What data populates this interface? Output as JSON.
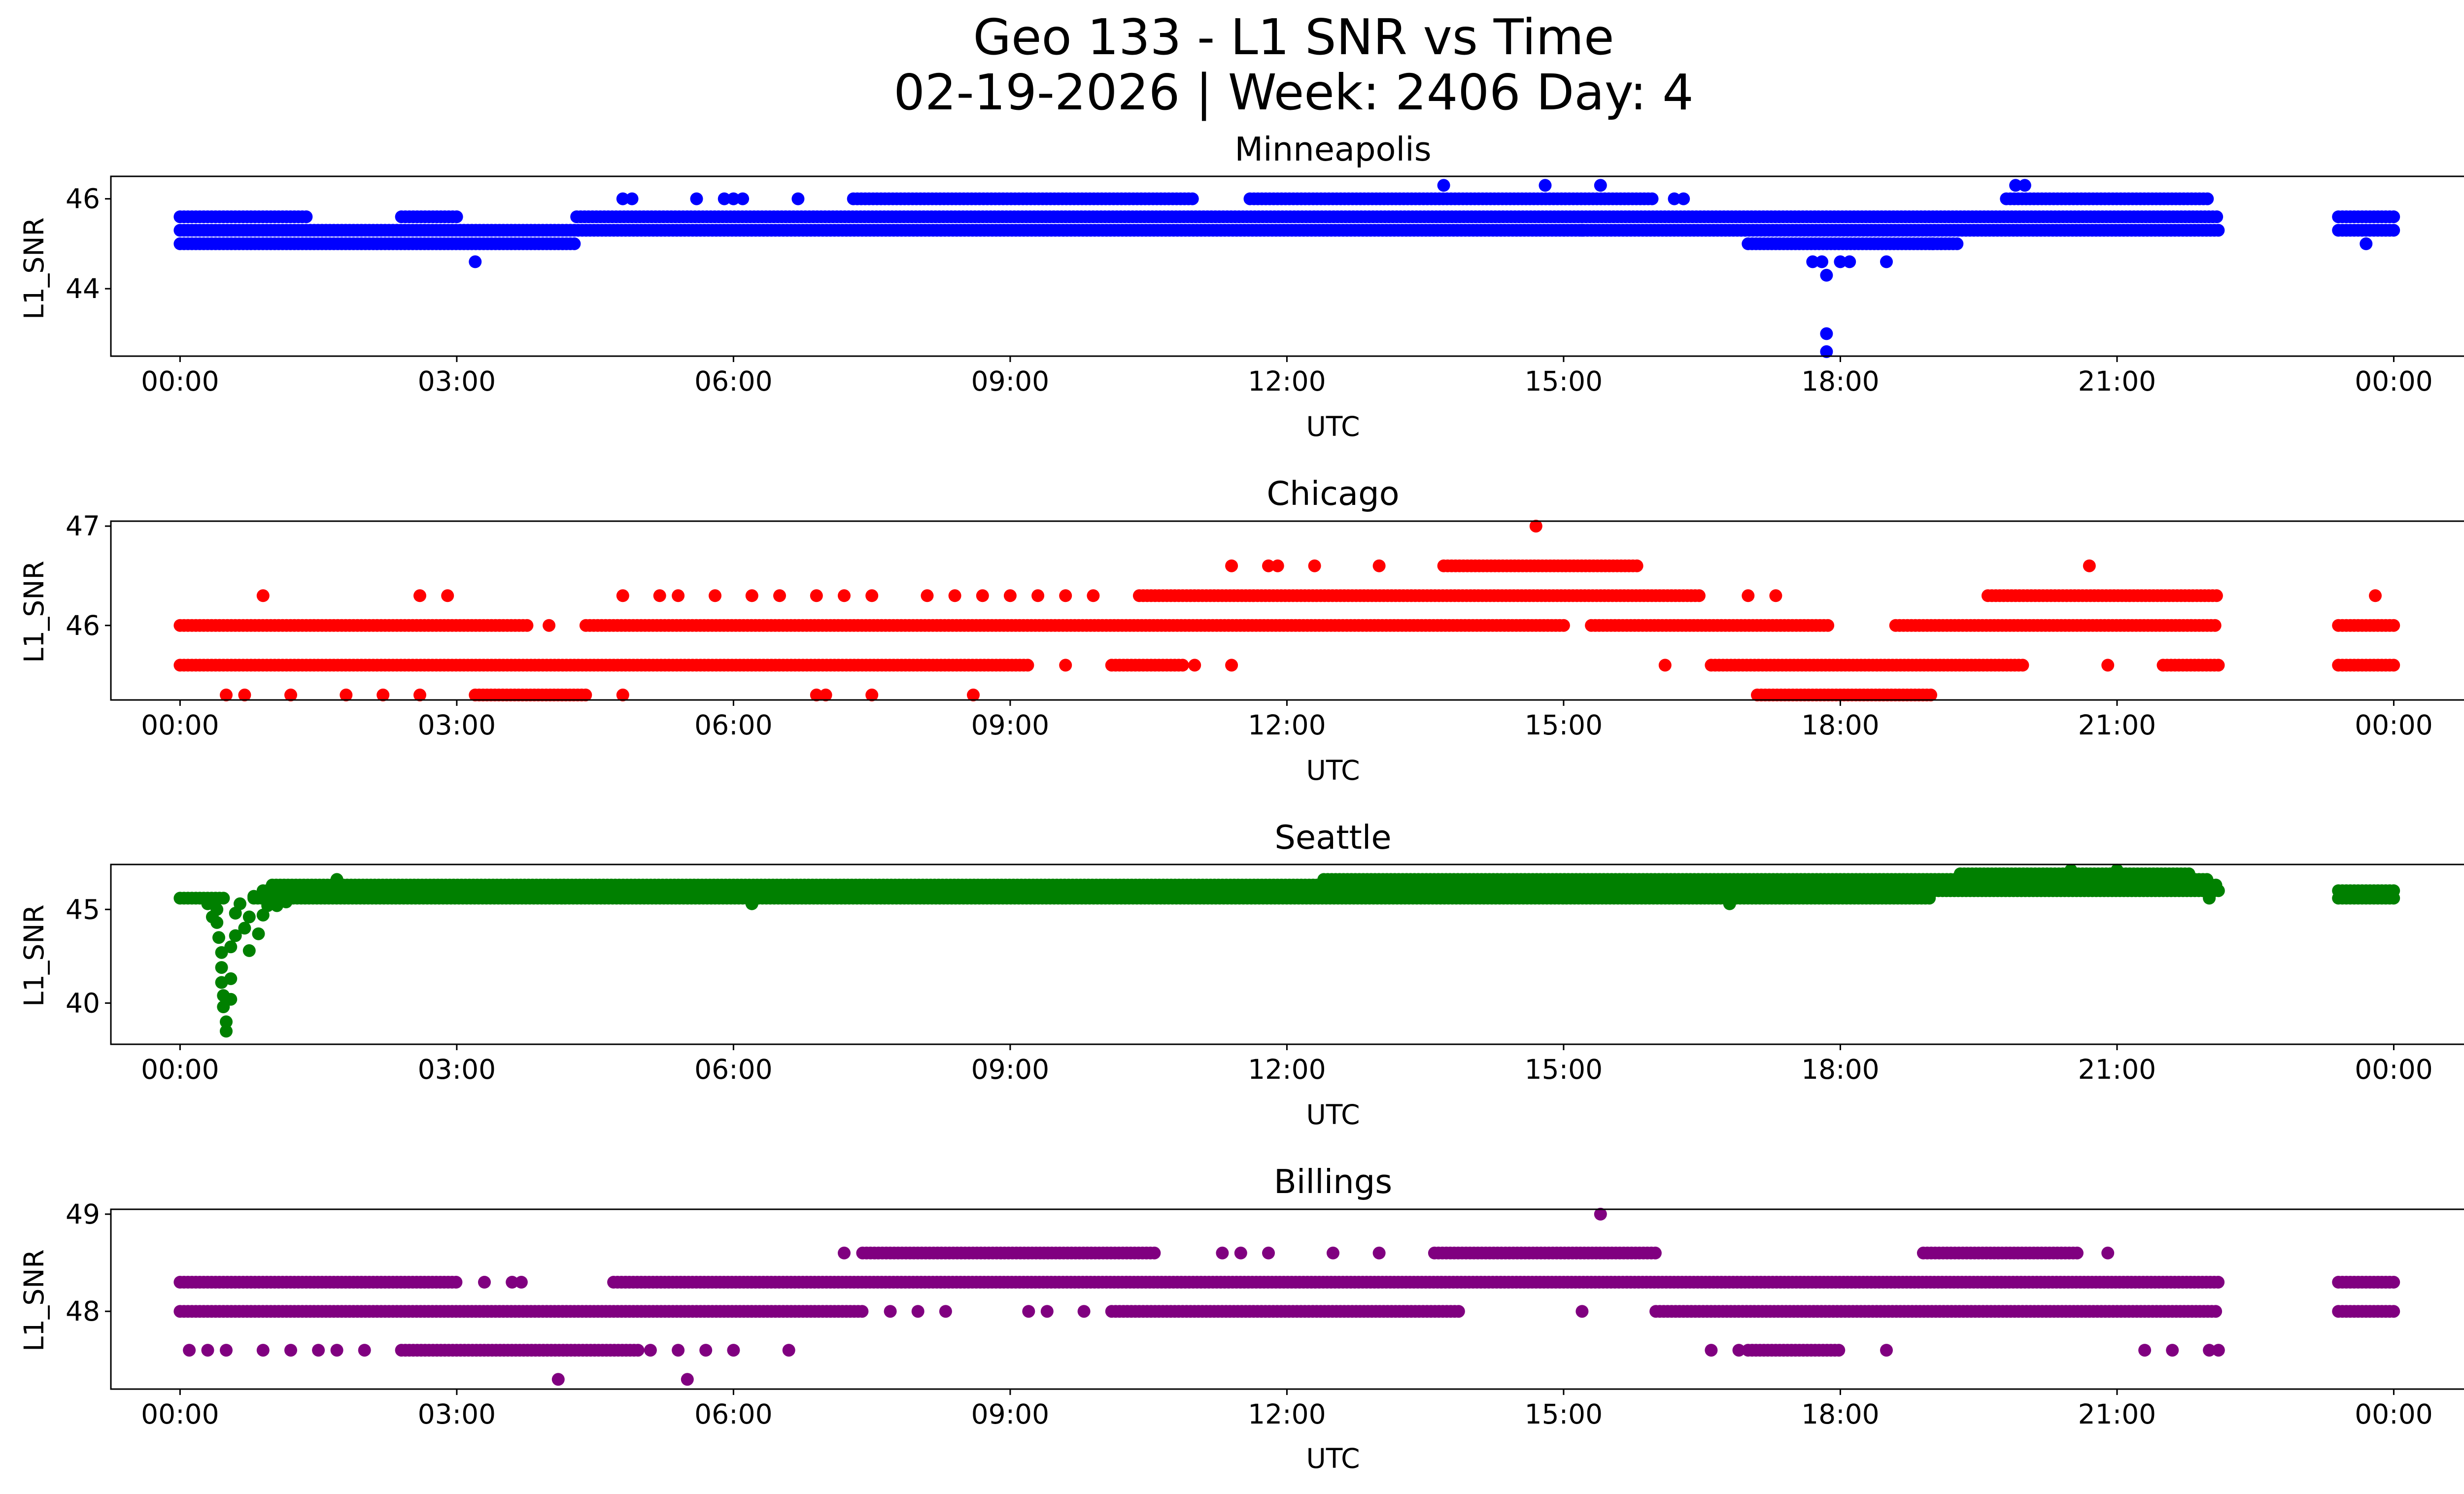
{
  "figure": {
    "title_line1": "Geo 133 - L1 SNR vs Time",
    "title_line2": "02-19-2026 | Week: 2406 Day: 4"
  },
  "chart_data": [
    {
      "type": "scatter",
      "title": "Minneapolis",
      "xlabel": "UTC",
      "ylabel": "L1_SNR",
      "color": "#0000ff",
      "xlim": [
        -0.75,
        25.75
      ],
      "ylim": [
        42.5,
        46.5
      ],
      "xtick_values": [
        0,
        3,
        6,
        9,
        12,
        15,
        18,
        21,
        24
      ],
      "xtick_labels": [
        "00:00",
        "03:00",
        "06:00",
        "09:00",
        "12:00",
        "15:00",
        "18:00",
        "21:00",
        "00:00"
      ],
      "ytick_values": [
        44,
        46
      ],
      "ytick_labels": [
        "44",
        "46"
      ],
      "bands": [
        {
          "y": 45.0,
          "segments": [
            [
              0.0,
              4.3
            ],
            [
              17.0,
              19.3
            ]
          ]
        },
        {
          "y": 45.3,
          "segments": [
            [
              0.0,
              22.1
            ],
            [
              23.4,
              24.0
            ]
          ]
        },
        {
          "y": 45.6,
          "segments": [
            [
              0.0,
              1.4
            ],
            [
              2.4,
              3.0
            ],
            [
              4.3,
              22.1
            ],
            [
              23.4,
              24.0
            ]
          ]
        },
        {
          "y": 46.0,
          "segments": [
            [
              7.3,
              11.0
            ],
            [
              11.6,
              16.0
            ],
            [
              19.8,
              22.0
            ]
          ]
        }
      ],
      "points": [
        {
          "x": 3.2,
          "y": 44.6
        },
        {
          "x": 4.8,
          "y": 46.0
        },
        {
          "x": 4.9,
          "y": 46.0
        },
        {
          "x": 5.6,
          "y": 46.0
        },
        {
          "x": 5.9,
          "y": 46.0
        },
        {
          "x": 6.0,
          "y": 46.0
        },
        {
          "x": 6.1,
          "y": 46.0
        },
        {
          "x": 6.7,
          "y": 46.0
        },
        {
          "x": 13.7,
          "y": 46.3
        },
        {
          "x": 14.8,
          "y": 46.3
        },
        {
          "x": 15.4,
          "y": 46.3
        },
        {
          "x": 15.2,
          "y": 45.3
        },
        {
          "x": 16.2,
          "y": 46.0
        },
        {
          "x": 16.3,
          "y": 46.0
        },
        {
          "x": 17.7,
          "y": 44.6
        },
        {
          "x": 17.8,
          "y": 44.6
        },
        {
          "x": 17.85,
          "y": 44.3
        },
        {
          "x": 18.0,
          "y": 44.6
        },
        {
          "x": 18.1,
          "y": 44.6
        },
        {
          "x": 17.85,
          "y": 43.0
        },
        {
          "x": 17.85,
          "y": 42.6
        },
        {
          "x": 18.5,
          "y": 44.6
        },
        {
          "x": 19.0,
          "y": 45.0
        },
        {
          "x": 19.9,
          "y": 46.3
        },
        {
          "x": 20.0,
          "y": 46.3
        },
        {
          "x": 23.7,
          "y": 45.0
        }
      ]
    },
    {
      "type": "scatter",
      "title": "Chicago",
      "xlabel": "UTC",
      "ylabel": "L1_SNR",
      "color": "#ff0000",
      "xlim": [
        -0.75,
        25.75
      ],
      "ylim": [
        45.25,
        47.05
      ],
      "xtick_values": [
        0,
        3,
        6,
        9,
        12,
        15,
        18,
        21,
        24
      ],
      "xtick_labels": [
        "00:00",
        "03:00",
        "06:00",
        "09:00",
        "12:00",
        "15:00",
        "18:00",
        "21:00",
        "00:00"
      ],
      "ytick_values": [
        46,
        47
      ],
      "ytick_labels": [
        "46",
        "47"
      ],
      "bands": [
        {
          "y": 45.3,
          "segments": [
            [
              3.2,
              4.4
            ],
            [
              17.1,
              19.0
            ]
          ]
        },
        {
          "y": 45.6,
          "segments": [
            [
              0.0,
              9.2
            ],
            [
              10.1,
              10.9
            ],
            [
              16.6,
              20.0
            ],
            [
              21.5,
              22.1
            ],
            [
              23.4,
              24.0
            ]
          ]
        },
        {
          "y": 46.0,
          "segments": [
            [
              0.0,
              3.8
            ],
            [
              4.4,
              15.0
            ],
            [
              15.3,
              17.9
            ],
            [
              18.6,
              22.1
            ],
            [
              23.4,
              24.0
            ]
          ]
        },
        {
          "y": 46.3,
          "segments": [
            [
              10.4,
              16.5
            ],
            [
              19.6,
              22.1
            ]
          ]
        },
        {
          "y": 46.6,
          "segments": [
            [
              13.7,
              15.8
            ]
          ]
        }
      ],
      "points": [
        {
          "x": 0.5,
          "y": 45.3
        },
        {
          "x": 0.7,
          "y": 45.3
        },
        {
          "x": 1.2,
          "y": 45.3
        },
        {
          "x": 1.8,
          "y": 45.3
        },
        {
          "x": 2.2,
          "y": 45.3
        },
        {
          "x": 2.6,
          "y": 45.3
        },
        {
          "x": 4.8,
          "y": 45.3
        },
        {
          "x": 6.9,
          "y": 45.3
        },
        {
          "x": 7.0,
          "y": 45.3
        },
        {
          "x": 7.5,
          "y": 45.3
        },
        {
          "x": 8.6,
          "y": 45.3
        },
        {
          "x": 0.9,
          "y": 46.3
        },
        {
          "x": 2.6,
          "y": 46.3
        },
        {
          "x": 2.9,
          "y": 46.3
        },
        {
          "x": 4.0,
          "y": 46.0
        },
        {
          "x": 4.8,
          "y": 46.3
        },
        {
          "x": 5.2,
          "y": 46.3
        },
        {
          "x": 5.4,
          "y": 46.3
        },
        {
          "x": 5.8,
          "y": 46.3
        },
        {
          "x": 6.2,
          "y": 46.3
        },
        {
          "x": 6.5,
          "y": 46.3
        },
        {
          "x": 6.9,
          "y": 46.3
        },
        {
          "x": 7.2,
          "y": 46.3
        },
        {
          "x": 7.5,
          "y": 46.3
        },
        {
          "x": 8.1,
          "y": 46.3
        },
        {
          "x": 8.4,
          "y": 46.3
        },
        {
          "x": 8.7,
          "y": 46.3
        },
        {
          "x": 9.0,
          "y": 46.3
        },
        {
          "x": 9.3,
          "y": 46.3
        },
        {
          "x": 9.6,
          "y": 46.3
        },
        {
          "x": 9.9,
          "y": 46.3
        },
        {
          "x": 11.4,
          "y": 46.6
        },
        {
          "x": 11.8,
          "y": 46.6
        },
        {
          "x": 11.9,
          "y": 46.6
        },
        {
          "x": 12.3,
          "y": 46.6
        },
        {
          "x": 13.0,
          "y": 46.6
        },
        {
          "x": 14.7,
          "y": 47.0
        },
        {
          "x": 16.1,
          "y": 45.6
        },
        {
          "x": 17.0,
          "y": 46.3
        },
        {
          "x": 17.3,
          "y": 46.3
        },
        {
          "x": 20.7,
          "y": 46.6
        },
        {
          "x": 9.6,
          "y": 45.6
        },
        {
          "x": 11.4,
          "y": 45.6
        },
        {
          "x": 20.9,
          "y": 45.6
        },
        {
          "x": 11.0,
          "y": 45.6
        },
        {
          "x": 23.8,
          "y": 46.3
        }
      ]
    },
    {
      "type": "scatter",
      "title": "Seattle",
      "xlabel": "UTC",
      "ylabel": "L1_SNR",
      "color": "#008000",
      "xlim": [
        -0.75,
        25.75
      ],
      "ylim": [
        37.8,
        47.4
      ],
      "xtick_values": [
        0,
        3,
        6,
        9,
        12,
        15,
        18,
        21,
        24
      ],
      "xtick_labels": [
        "00:00",
        "03:00",
        "06:00",
        "09:00",
        "12:00",
        "15:00",
        "18:00",
        "21:00",
        "00:00"
      ],
      "ytick_values": [
        40,
        45
      ],
      "ytick_labels": [
        "40",
        "45"
      ],
      "bands": [
        {
          "y": 45.6,
          "segments": [
            [
              0.0,
              0.5
            ],
            [
              0.8,
              19.0
            ],
            [
              23.4,
              24.0
            ]
          ]
        },
        {
          "y": 46.0,
          "segments": [
            [
              0.9,
              22.1
            ],
            [
              23.4,
              24.0
            ]
          ]
        },
        {
          "y": 46.3,
          "segments": [
            [
              1.0,
              22.1
            ]
          ]
        },
        {
          "y": 46.6,
          "segments": [
            [
              12.4,
              22.0
            ]
          ]
        },
        {
          "y": 46.9,
          "segments": [
            [
              19.3,
              21.8
            ]
          ]
        }
      ],
      "points": [
        {
          "x": 0.4,
          "y": 45.0
        },
        {
          "x": 0.4,
          "y": 44.3
        },
        {
          "x": 0.42,
          "y": 43.5
        },
        {
          "x": 0.45,
          "y": 42.7
        },
        {
          "x": 0.45,
          "y": 41.9
        },
        {
          "x": 0.45,
          "y": 41.1
        },
        {
          "x": 0.47,
          "y": 40.4
        },
        {
          "x": 0.47,
          "y": 39.8
        },
        {
          "x": 0.5,
          "y": 39.0
        },
        {
          "x": 0.5,
          "y": 38.5
        },
        {
          "x": 0.55,
          "y": 40.2
        },
        {
          "x": 0.55,
          "y": 41.3
        },
        {
          "x": 0.55,
          "y": 43.0
        },
        {
          "x": 0.6,
          "y": 44.8
        },
        {
          "x": 0.6,
          "y": 43.6
        },
        {
          "x": 0.65,
          "y": 45.3
        },
        {
          "x": 0.7,
          "y": 44.0
        },
        {
          "x": 0.75,
          "y": 42.8
        },
        {
          "x": 0.75,
          "y": 44.6
        },
        {
          "x": 0.8,
          "y": 45.7
        },
        {
          "x": 0.85,
          "y": 43.7
        },
        {
          "x": 0.9,
          "y": 44.7
        },
        {
          "x": 0.95,
          "y": 45.2
        },
        {
          "x": 1.05,
          "y": 45.2
        },
        {
          "x": 1.15,
          "y": 45.4
        },
        {
          "x": 0.3,
          "y": 45.3
        },
        {
          "x": 0.35,
          "y": 44.6
        },
        {
          "x": 1.7,
          "y": 46.6
        },
        {
          "x": 6.2,
          "y": 45.3
        },
        {
          "x": 16.8,
          "y": 45.3
        },
        {
          "x": 20.5,
          "y": 47.1
        },
        {
          "x": 21.0,
          "y": 47.1
        },
        {
          "x": 22.0,
          "y": 45.6
        }
      ]
    },
    {
      "type": "scatter",
      "title": "Billings",
      "xlabel": "UTC",
      "ylabel": "L1_SNR",
      "color": "#800080",
      "xlim": [
        -0.75,
        25.75
      ],
      "ylim": [
        47.2,
        49.05
      ],
      "xtick_values": [
        0,
        3,
        6,
        9,
        12,
        15,
        18,
        21,
        24
      ],
      "xtick_labels": [
        "00:00",
        "03:00",
        "06:00",
        "09:00",
        "12:00",
        "15:00",
        "18:00",
        "21:00",
        "00:00"
      ],
      "ytick_values": [
        48,
        49
      ],
      "ytick_labels": [
        "48",
        "49"
      ],
      "bands": [
        {
          "y": 47.6,
          "segments": [
            [
              2.4,
              5.0
            ],
            [
              17.0,
              18.0
            ]
          ]
        },
        {
          "y": 48.0,
          "segments": [
            [
              0.0,
              7.4
            ],
            [
              10.1,
              13.9
            ],
            [
              16.0,
              22.1
            ],
            [
              23.4,
              24.0
            ]
          ]
        },
        {
          "y": 48.3,
          "segments": [
            [
              0.0,
              3.0
            ],
            [
              4.7,
              22.1
            ],
            [
              23.4,
              24.0
            ]
          ]
        },
        {
          "y": 48.6,
          "segments": [
            [
              7.4,
              10.6
            ],
            [
              13.6,
              16.0
            ],
            [
              18.9,
              20.6
            ]
          ]
        }
      ],
      "points": [
        {
          "x": 0.1,
          "y": 47.6
        },
        {
          "x": 0.3,
          "y": 47.6
        },
        {
          "x": 0.5,
          "y": 47.6
        },
        {
          "x": 0.9,
          "y": 47.6
        },
        {
          "x": 1.2,
          "y": 47.6
        },
        {
          "x": 1.5,
          "y": 47.6
        },
        {
          "x": 1.7,
          "y": 47.6
        },
        {
          "x": 2.0,
          "y": 47.6
        },
        {
          "x": 3.3,
          "y": 48.3
        },
        {
          "x": 3.6,
          "y": 48.3
        },
        {
          "x": 3.7,
          "y": 48.3
        },
        {
          "x": 4.1,
          "y": 47.3
        },
        {
          "x": 5.5,
          "y": 47.3
        },
        {
          "x": 5.1,
          "y": 47.6
        },
        {
          "x": 5.4,
          "y": 47.6
        },
        {
          "x": 5.7,
          "y": 47.6
        },
        {
          "x": 6.0,
          "y": 47.6
        },
        {
          "x": 6.6,
          "y": 47.6
        },
        {
          "x": 7.2,
          "y": 48.6
        },
        {
          "x": 7.7,
          "y": 48.0
        },
        {
          "x": 8.0,
          "y": 48.0
        },
        {
          "x": 8.3,
          "y": 48.0
        },
        {
          "x": 9.2,
          "y": 48.0
        },
        {
          "x": 9.4,
          "y": 48.0
        },
        {
          "x": 9.8,
          "y": 48.0
        },
        {
          "x": 11.3,
          "y": 48.6
        },
        {
          "x": 11.5,
          "y": 48.6
        },
        {
          "x": 11.8,
          "y": 48.6
        },
        {
          "x": 12.5,
          "y": 48.6
        },
        {
          "x": 13.0,
          "y": 48.6
        },
        {
          "x": 15.2,
          "y": 48.0
        },
        {
          "x": 15.4,
          "y": 49.0
        },
        {
          "x": 16.6,
          "y": 47.6
        },
        {
          "x": 16.9,
          "y": 47.6
        },
        {
          "x": 18.5,
          "y": 47.6
        },
        {
          "x": 20.9,
          "y": 48.6
        },
        {
          "x": 21.3,
          "y": 47.6
        },
        {
          "x": 21.6,
          "y": 47.6
        },
        {
          "x": 22.0,
          "y": 47.6
        },
        {
          "x": 22.1,
          "y": 47.6
        }
      ]
    }
  ]
}
